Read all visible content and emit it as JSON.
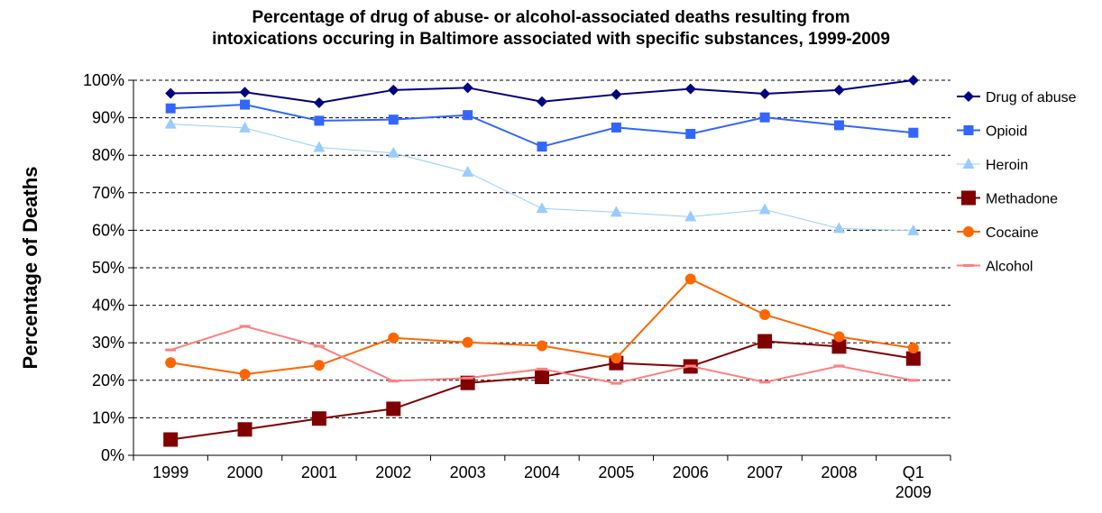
{
  "chart_data": {
    "type": "line",
    "title_lines": [
      "Percentage of drug of abuse- or alcohol-associated deaths resulting from",
      "intoxications occuring in Baltimore associated with specific substances, 1999-2009"
    ],
    "ylabel": "Percentage of Deaths",
    "xlabel": "",
    "categories": [
      "1999",
      "2000",
      "2001",
      "2002",
      "2003",
      "2004",
      "2005",
      "2006",
      "2007",
      "2008",
      "Q1 2009"
    ],
    "y_ticks": [
      "0%",
      "10%",
      "20%",
      "30%",
      "40%",
      "50%",
      "60%",
      "70%",
      "80%",
      "90%",
      "100%"
    ],
    "ylim": [
      0,
      100
    ],
    "grid": "horizontal dashed",
    "legend_position": "right",
    "series": [
      {
        "name": "Drug of abuse",
        "color": "#000080",
        "marker": "diamond",
        "values": [
          96.5,
          96.8,
          94,
          97.4,
          98,
          94.3,
          96.2,
          97.7,
          96.4,
          97.4,
          100
        ]
      },
      {
        "name": "Opioid",
        "color": "#3366ff",
        "marker": "square",
        "values": [
          92.5,
          93.5,
          89.2,
          89.5,
          90.7,
          82.3,
          87.4,
          85.7,
          90.1,
          88,
          86
        ]
      },
      {
        "name": "Heroin",
        "color": "#99ccff",
        "marker": "triangle",
        "values": [
          88.3,
          87.3,
          82.1,
          80.6,
          75.5,
          65.8,
          64.8,
          63.6,
          65.5,
          60.5,
          59.9
        ]
      },
      {
        "name": "Methadone",
        "color": "#800000",
        "marker": "square-large",
        "values": [
          4.2,
          6.9,
          9.8,
          12.4,
          19.3,
          20.9,
          24.6,
          23.7,
          30.4,
          29,
          25.8
        ]
      },
      {
        "name": "Cocaine",
        "color": "#ff6600",
        "marker": "circle",
        "values": [
          24.7,
          21.6,
          24,
          31.3,
          30.1,
          29.2,
          25.9,
          47,
          37.5,
          31.6,
          28.6
        ]
      },
      {
        "name": "Alcohol",
        "color": "#ff8080",
        "marker": "dash",
        "values": [
          28.1,
          34.4,
          29.1,
          19.8,
          20.6,
          23,
          19.2,
          23.8,
          19.5,
          23.8,
          20
        ]
      }
    ]
  }
}
